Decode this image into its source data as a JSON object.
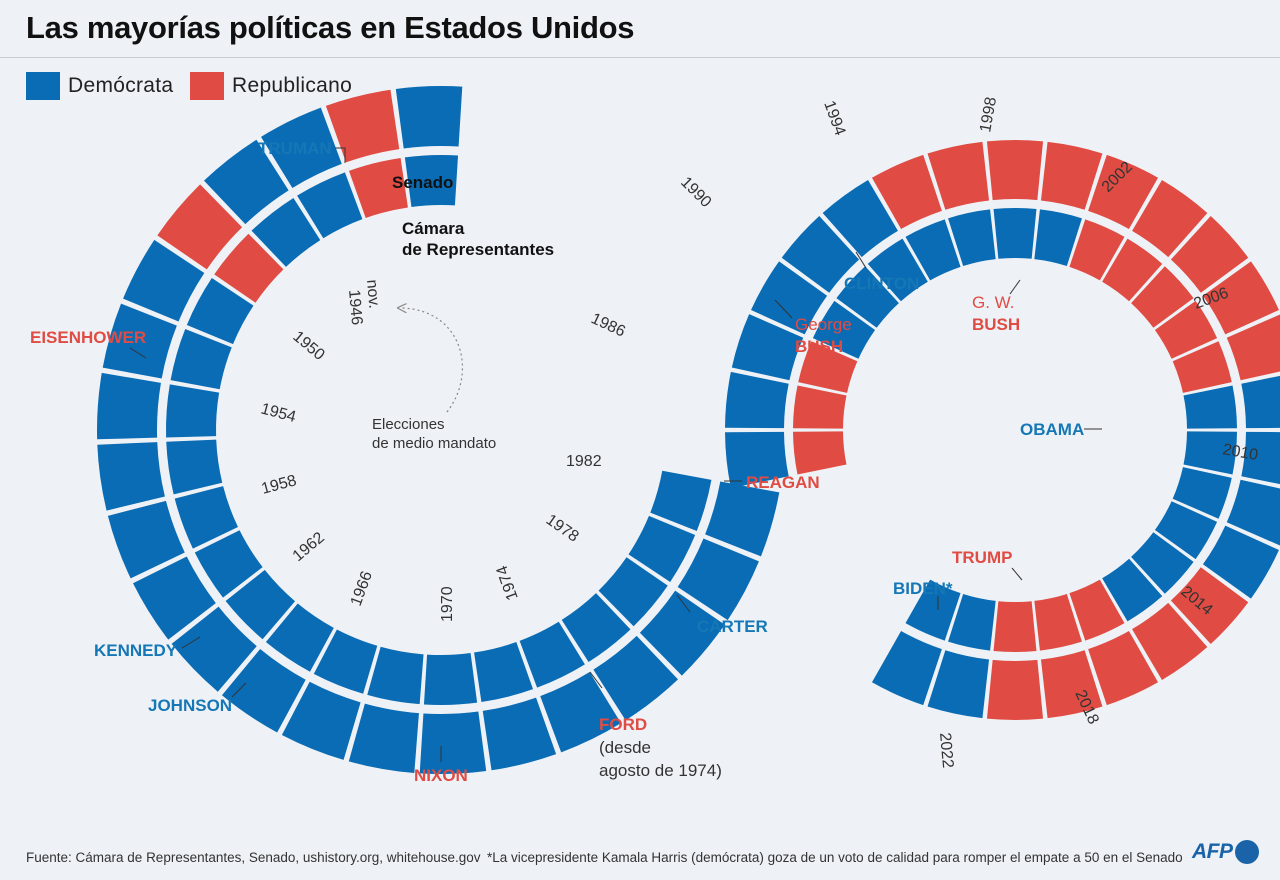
{
  "title": "Las mayorías políticas en Estados Unidos",
  "legend": [
    {
      "label": "Demócrata",
      "color": "#0a6cb5"
    },
    {
      "label": "Republicano",
      "color": "#e04c43"
    }
  ],
  "chart_data": {
    "type": "spiral",
    "series": [
      {
        "name": "Senado",
        "majorities": [
          "D",
          "R",
          "D",
          "D",
          "R",
          "D",
          "D",
          "D",
          "D",
          "D",
          "D",
          "D",
          "D",
          "D",
          "D",
          "D",
          "D",
          "D",
          "D",
          "D",
          "D",
          "D",
          "D",
          "D",
          "D",
          "D",
          "D",
          "D",
          "R",
          "R",
          "R",
          "R",
          "R",
          "R",
          "R",
          "R",
          "R",
          "D",
          "D",
          "D",
          "D",
          "R",
          "R",
          "R",
          "R",
          "R",
          "D",
          "D"
        ]
      },
      {
        "name": "Cámara de Representantes",
        "majorities": [
          "D",
          "R",
          "D",
          "D",
          "R",
          "D",
          "D",
          "D",
          "D",
          "D",
          "D",
          "D",
          "D",
          "D",
          "D",
          "D",
          "D",
          "D",
          "D",
          "D",
          "D",
          "D",
          "R",
          "R",
          "R",
          "D",
          "D",
          "D",
          "D",
          "D",
          "D",
          "D",
          "R",
          "R",
          "R",
          "R",
          "R",
          "D",
          "D",
          "D",
          "D",
          "D",
          "D",
          "R",
          "R",
          "R",
          "D",
          "D"
        ]
      }
    ],
    "year_labels": [
      "nov. 1946",
      "1950",
      "1954",
      "1958",
      "1962",
      "1966",
      "1970",
      "1974",
      "1978",
      "1982",
      "1986",
      "1990",
      "1994",
      "1998",
      "2002",
      "2006",
      "2010",
      "2014",
      "2018",
      "2022"
    ],
    "presidents": [
      {
        "name": "TRUMAN",
        "party": "D"
      },
      {
        "name": "EISENHOWER",
        "party": "R"
      },
      {
        "name": "KENNEDY",
        "party": "D"
      },
      {
        "name": "JOHNSON",
        "party": "D"
      },
      {
        "name": "NIXON",
        "party": "R"
      },
      {
        "name": "FORD",
        "party": "R",
        "note": "(desde agosto de 1974)"
      },
      {
        "name": "CARTER",
        "party": "D"
      },
      {
        "name": "REAGAN",
        "party": "R"
      },
      {
        "name": "George BUSH",
        "party": "R"
      },
      {
        "name": "CLINTON",
        "party": "D"
      },
      {
        "name": "G. W. BUSH",
        "party": "R"
      },
      {
        "name": "OBAMA",
        "party": "D"
      },
      {
        "name": "TRUMP",
        "party": "R"
      },
      {
        "name": "BIDEN*",
        "party": "D"
      }
    ],
    "ring_labels": {
      "outer": "Senado",
      "inner": "Cámara de Representantes"
    },
    "annotation": "Elecciones de medio mandato"
  },
  "labels": {
    "truman": "TRUMAN",
    "eisenhower": "EISENHOWER",
    "kennedy": "KENNEDY",
    "johnson": "JOHNSON",
    "nixon": "NIXON",
    "ford": "FORD",
    "ford_note_1": "(desde",
    "ford_note_2": "agosto de 1974)",
    "carter": "CARTER",
    "reagan": "REAGAN",
    "george": "George",
    "bush": "BUSH",
    "clinton": "CLINTON",
    "gw": "G. W.",
    "gwbush": "BUSH",
    "obama": "OBAMA",
    "trump": "TRUMP",
    "biden": "BIDEN*",
    "senado": "Senado",
    "camara1": "Cámara",
    "camara2": "de Representantes",
    "elecciones1": "Elecciones",
    "elecciones2": "de medio mandato",
    "nov": "nov.",
    "y1946": "1946",
    "y1950": "1950",
    "y1954": "1954",
    "y1958": "1958",
    "y1962": "1962",
    "y1966": "1966",
    "y1970": "1970",
    "y1974": "1974",
    "y1978": "1978",
    "y1982": "1982",
    "y1986": "1986",
    "y1990": "1990",
    "y1994": "1994",
    "y1998": "1998",
    "y2002": "2002",
    "y2006": "2006",
    "y2010": "2010",
    "y2014": "2014",
    "y2018": "2018",
    "y2022": "2022"
  },
  "footer": {
    "source": "Fuente: Cámara de Representantes, Senado, ushistory.org, whitehouse.gov",
    "note": "*La vicepresidente Kamala Harris (demócrata) goza de un voto de calidad para romper el empate a 50 en el Senado",
    "logo": "AFP"
  }
}
